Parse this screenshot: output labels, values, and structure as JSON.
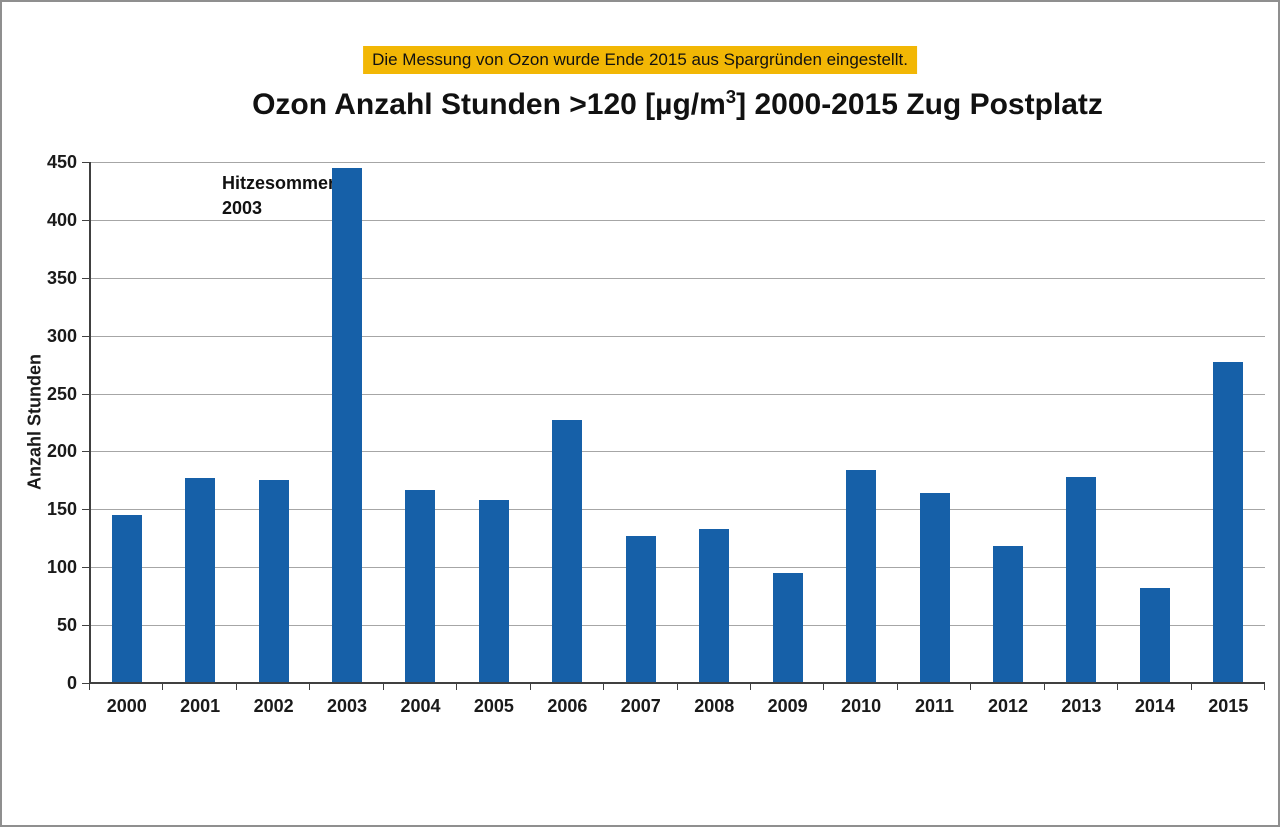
{
  "note": {
    "text": "Die Messung von Ozon wurde Ende 2015 aus Spargründen eingestellt.",
    "background": "#F2B705"
  },
  "title": {
    "prefix": "Ozon Anzahl Stunden >120 [µg/m",
    "superscript": "3",
    "suffix": "] 2000-2015 Zug Postplatz"
  },
  "annotation": {
    "line1": "Hitzesommer",
    "line2": "2003"
  },
  "colors": {
    "bar": "#1660A8",
    "gridline": "#A6A6A6",
    "axis": "#404040",
    "note_background": "#F2B705"
  },
  "chart_data": {
    "type": "bar",
    "title": "Ozon Anzahl Stunden >120 [µg/m3] 2000-2015 Zug Postplatz",
    "categories": [
      "2000",
      "2001",
      "2002",
      "2003",
      "2004",
      "2005",
      "2006",
      "2007",
      "2008",
      "2009",
      "2010",
      "2011",
      "2012",
      "2013",
      "2014",
      "2015"
    ],
    "values": [
      145,
      177,
      175,
      445,
      167,
      158,
      227,
      127,
      133,
      95,
      184,
      164,
      118,
      178,
      82,
      277
    ],
    "xlabel": "",
    "ylabel": "Anzahl Stunden",
    "ylim": [
      0,
      450
    ],
    "ytick_interval": 50,
    "ytick_labels": [
      "0",
      "50",
      "100",
      "150",
      "200",
      "250",
      "300",
      "350",
      "400",
      "450"
    ],
    "grid": true,
    "legend": false,
    "annotation": "Hitzesommer 2003",
    "bar_color": "#1660A8"
  }
}
